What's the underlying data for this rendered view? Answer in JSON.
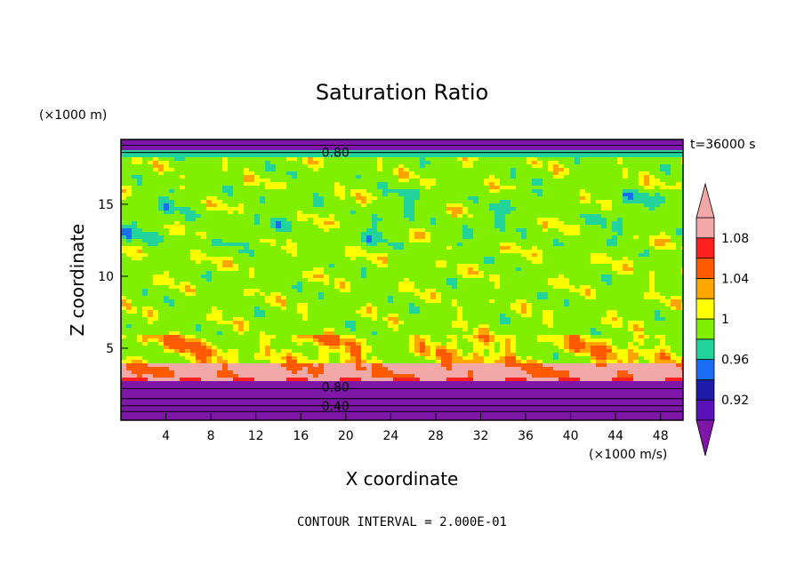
{
  "chart_data": {
    "type": "heatmap",
    "title": "Saturation Ratio",
    "xlabel": "X coordinate",
    "ylabel": "Z coordinate",
    "x_unit": "(×1000 m/s)",
    "y_unit": "(×1000 m)",
    "time_label": "t=36000 s",
    "footer": "CONTOUR INTERVAL = 2.000E-01",
    "xlim": [
      0,
      50
    ],
    "ylim": [
      0,
      19.5
    ],
    "x_ticks": [
      4,
      8,
      12,
      16,
      20,
      24,
      28,
      32,
      36,
      40,
      44,
      48
    ],
    "y_ticks": [
      5,
      10,
      15
    ],
    "colorbar": {
      "levels": [
        0.92,
        0.96,
        1,
        1.04,
        1.08
      ],
      "labels": [
        "0.92",
        "0.96",
        "1",
        "1.04",
        "1.08"
      ],
      "colors": [
        "#5a12b8",
        "#1c1ca8",
        "#1a6ef5",
        "#22d49c",
        "#80f000",
        "#ffff00",
        "#ffa500",
        "#ff5a00",
        "#ff2020",
        "#f3a8a8"
      ],
      "low_color": "#7e16a8",
      "high_color": "#f3a8a8"
    },
    "contour_labels": [
      {
        "text": "0.80",
        "x": 17.5,
        "z": 18.6
      },
      {
        "text": "0.80",
        "x": 17.5,
        "z": 2.3
      },
      {
        "text": "0.40",
        "x": 17.5,
        "z": 1.0
      }
    ],
    "regions": {
      "upper_dry_layer": {
        "z_range": [
          18.8,
          19.5
        ],
        "value_below": 0.92
      },
      "lower_dry_layer": {
        "z_range": [
          0,
          2.6
        ],
        "value_below": 0.92
      },
      "supersaturated_band": {
        "z_range": [
          2.9,
          4.0
        ],
        "value_above": 1.08
      },
      "mid_troposphere": {
        "z_range": [
          4,
          18.5
        ],
        "value_approx": 1.0
      }
    }
  }
}
